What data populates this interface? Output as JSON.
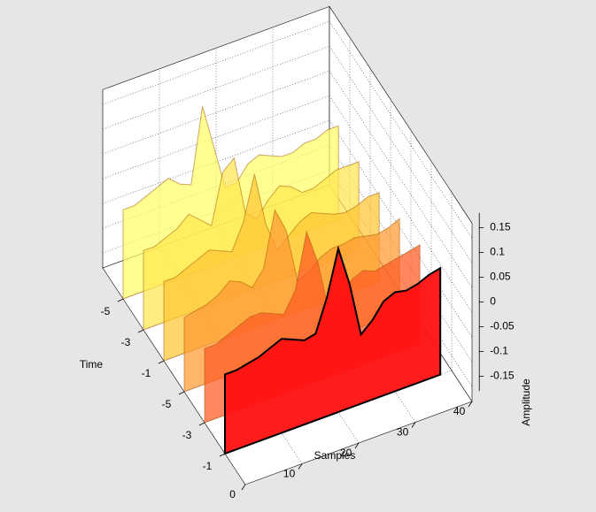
{
  "chart_data": {
    "type": "waterfall3d",
    "xlabel": "Samples",
    "ylabel": "Time",
    "zlabel": "Amplitude",
    "x": [
      0,
      2,
      4,
      6,
      8,
      10,
      12,
      14,
      16,
      18,
      20,
      22,
      24,
      26,
      28,
      30,
      32,
      34,
      36,
      38
    ],
    "xlim": [
      0,
      40
    ],
    "xticks": [
      0,
      10,
      20,
      30,
      40
    ],
    "ylim": [
      -1,
      6
    ],
    "yticks": [
      {
        "value": 0,
        "label": "-1"
      },
      {
        "value": 1,
        "label": "-3"
      },
      {
        "value": 2,
        "label": "-5"
      },
      {
        "value": 3,
        "label": "-1"
      },
      {
        "value": 4,
        "label": "-3"
      },
      {
        "value": 5,
        "label": "-5"
      }
    ],
    "zlim": [
      -0.18,
      0.18
    ],
    "zticks": [
      -0.15,
      -0.1,
      -0.05,
      0,
      0.05,
      0.1,
      0.15
    ],
    "grid": true,
    "series": [
      {
        "color": "#ffff66",
        "values": [
          0.0,
          0.0,
          0.01,
          0.02,
          0.03,
          0.01,
          0.0,
          0.15,
          0.06,
          -0.03,
          -0.03,
          0.0,
          0.01,
          0.0,
          -0.01,
          -0.01,
          0.0,
          0.0,
          0.01,
          0.01
        ]
      },
      {
        "color": "#ffe84d",
        "values": [
          -0.02,
          -0.02,
          -0.01,
          0.0,
          0.02,
          0.0,
          -0.02,
          0.08,
          0.1,
          -0.02,
          -0.04,
          -0.01,
          0.01,
          0.0,
          -0.02,
          -0.02,
          -0.01,
          0.0,
          0.0,
          0.0
        ]
      },
      {
        "color": "#ffc633",
        "values": [
          -0.02,
          -0.02,
          -0.01,
          0.0,
          0.01,
          0.0,
          -0.01,
          0.04,
          0.13,
          0.02,
          -0.04,
          -0.02,
          0.0,
          0.01,
          0.0,
          -0.01,
          -0.015,
          -0.01,
          0.0,
          0.0
        ]
      },
      {
        "color": "#ff9930",
        "values": [
          -0.03,
          -0.025,
          -0.02,
          -0.01,
          0.01,
          0.0,
          -0.02,
          0.01,
          0.12,
          0.07,
          -0.04,
          -0.03,
          -0.01,
          0.0,
          0.0,
          0.005,
          0.0,
          -0.005,
          0.0,
          0.01
        ]
      },
      {
        "color": "#ff5a22",
        "values": [
          -0.03,
          -0.03,
          -0.02,
          -0.01,
          0.0,
          0.0,
          -0.01,
          -0.02,
          0.02,
          0.13,
          0.06,
          -0.05,
          -0.03,
          0.0,
          0.01,
          0.0,
          0.005,
          0.01,
          0.015,
          0.02
        ]
      },
      {
        "color": "#ff1010",
        "values": [
          -0.02,
          -0.02,
          -0.015,
          -0.01,
          0.0,
          0.01,
          0.0,
          -0.01,
          -0.005,
          0.06,
          0.15,
          0.07,
          -0.04,
          -0.02,
          0.01,
          0.02,
          0.015,
          0.02,
          0.03,
          0.035
        ]
      }
    ]
  }
}
